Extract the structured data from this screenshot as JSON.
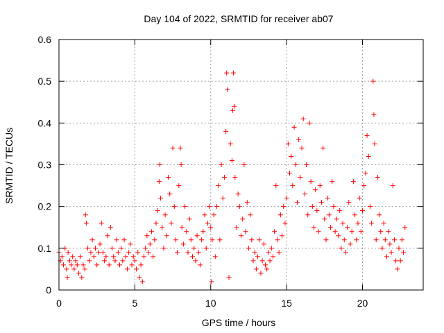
{
  "chart_data": {
    "type": "scatter",
    "title": "Day 104 of 2022, SRMTID for receiver ab07",
    "xlabel": "GPS time / hours",
    "ylabel": "SRMTID / TECUs",
    "xlim": [
      0,
      24
    ],
    "ylim": [
      0,
      0.6
    ],
    "xticks": [
      0,
      5,
      10,
      15,
      20
    ],
    "yticks": [
      0,
      0.1,
      0.2,
      0.3,
      0.4,
      0.5,
      0.6
    ],
    "xtick_labels": [
      "0",
      "5",
      "10",
      "15",
      "20"
    ],
    "ytick_labels": [
      "0",
      "0.1",
      "0.2",
      "0.3",
      "0.4",
      "0.5",
      "0.6"
    ],
    "grid": true,
    "marker": "plus",
    "color": "#ff0000",
    "series": [
      {
        "name": "SRMTID",
        "points": [
          [
            0.0,
            0.09
          ],
          [
            0.1,
            0.07
          ],
          [
            0.2,
            0.08
          ],
          [
            0.3,
            0.06
          ],
          [
            0.4,
            0.1
          ],
          [
            0.5,
            0.05
          ],
          [
            0.55,
            0.03
          ],
          [
            0.6,
            0.09
          ],
          [
            0.7,
            0.07
          ],
          [
            0.8,
            0.06
          ],
          [
            0.9,
            0.08
          ],
          [
            1.0,
            0.05
          ],
          [
            1.1,
            0.07
          ],
          [
            1.2,
            0.06
          ],
          [
            1.3,
            0.04
          ],
          [
            1.4,
            0.08
          ],
          [
            1.5,
            0.03
          ],
          [
            1.6,
            0.06
          ],
          [
            1.7,
            0.05
          ],
          [
            1.75,
            0.18
          ],
          [
            1.8,
            0.16
          ],
          [
            1.9,
            0.1
          ],
          [
            2.0,
            0.07
          ],
          [
            2.1,
            0.09
          ],
          [
            2.2,
            0.12
          ],
          [
            2.3,
            0.08
          ],
          [
            2.4,
            0.1
          ],
          [
            2.5,
            0.06
          ],
          [
            2.6,
            0.09
          ],
          [
            2.7,
            0.11
          ],
          [
            2.8,
            0.16
          ],
          [
            2.9,
            0.09
          ],
          [
            3.0,
            0.07
          ],
          [
            3.1,
            0.08
          ],
          [
            3.2,
            0.13
          ],
          [
            3.3,
            0.06
          ],
          [
            3.4,
            0.15
          ],
          [
            3.5,
            0.1
          ],
          [
            3.6,
            0.08
          ],
          [
            3.7,
            0.07
          ],
          [
            3.8,
            0.12
          ],
          [
            3.9,
            0.09
          ],
          [
            4.0,
            0.06
          ],
          [
            4.1,
            0.1
          ],
          [
            4.2,
            0.07
          ],
          [
            4.3,
            0.12
          ],
          [
            4.4,
            0.08
          ],
          [
            4.5,
            0.05
          ],
          [
            4.6,
            0.09
          ],
          [
            4.7,
            0.11
          ],
          [
            4.8,
            0.06
          ],
          [
            4.9,
            0.08
          ],
          [
            5.0,
            0.07
          ],
          [
            5.1,
            0.05
          ],
          [
            5.2,
            0.09
          ],
          [
            5.3,
            0.03
          ],
          [
            5.4,
            0.06
          ],
          [
            5.5,
            0.02
          ],
          [
            5.6,
            0.08
          ],
          [
            5.7,
            0.1
          ],
          [
            5.8,
            0.13
          ],
          [
            5.9,
            0.09
          ],
          [
            6.0,
            0.11
          ],
          [
            6.1,
            0.14
          ],
          [
            6.2,
            0.08
          ],
          [
            6.3,
            0.12
          ],
          [
            6.4,
            0.16
          ],
          [
            6.5,
            0.19
          ],
          [
            6.6,
            0.26
          ],
          [
            6.65,
            0.3
          ],
          [
            6.7,
            0.22
          ],
          [
            6.8,
            0.15
          ],
          [
            6.9,
            0.1
          ],
          [
            7.0,
            0.18
          ],
          [
            7.1,
            0.13
          ],
          [
            7.2,
            0.27
          ],
          [
            7.3,
            0.23
          ],
          [
            7.4,
            0.16
          ],
          [
            7.5,
            0.34
          ],
          [
            7.6,
            0.2
          ],
          [
            7.7,
            0.12
          ],
          [
            7.8,
            0.09
          ],
          [
            7.9,
            0.25
          ],
          [
            8.0,
            0.34
          ],
          [
            8.05,
            0.3
          ],
          [
            8.1,
            0.15
          ],
          [
            8.2,
            0.11
          ],
          [
            8.3,
            0.2
          ],
          [
            8.4,
            0.14
          ],
          [
            8.5,
            0.09
          ],
          [
            8.6,
            0.17
          ],
          [
            8.7,
            0.12
          ],
          [
            8.8,
            0.08
          ],
          [
            8.9,
            0.1
          ],
          [
            9.0,
            0.07
          ],
          [
            9.1,
            0.13
          ],
          [
            9.2,
            0.09
          ],
          [
            9.3,
            0.06
          ],
          [
            9.4,
            0.12
          ],
          [
            9.5,
            0.14
          ],
          [
            9.6,
            0.18
          ],
          [
            9.7,
            0.1
          ],
          [
            9.8,
            0.16
          ],
          [
            9.9,
            0.2
          ],
          [
            10.0,
            0.15
          ],
          [
            10.05,
            0.02
          ],
          [
            10.1,
            0.12
          ],
          [
            10.2,
            0.18
          ],
          [
            10.3,
            0.08
          ],
          [
            10.4,
            0.2
          ],
          [
            10.5,
            0.25
          ],
          [
            10.6,
            0.12
          ],
          [
            10.7,
            0.3
          ],
          [
            10.8,
            0.22
          ],
          [
            10.9,
            0.27
          ],
          [
            11.0,
            0.38
          ],
          [
            11.05,
            0.52
          ],
          [
            11.1,
            0.48
          ],
          [
            11.2,
            0.03
          ],
          [
            11.3,
            0.35
          ],
          [
            11.4,
            0.31
          ],
          [
            11.45,
            0.43
          ],
          [
            11.5,
            0.52
          ],
          [
            11.55,
            0.44
          ],
          [
            11.6,
            0.27
          ],
          [
            11.7,
            0.15
          ],
          [
            11.8,
            0.23
          ],
          [
            11.9,
            0.2
          ],
          [
            12.0,
            0.13
          ],
          [
            12.1,
            0.17
          ],
          [
            12.2,
            0.3
          ],
          [
            12.3,
            0.14
          ],
          [
            12.4,
            0.21
          ],
          [
            12.5,
            0.1
          ],
          [
            12.6,
            0.18
          ],
          [
            12.7,
            0.12
          ],
          [
            12.8,
            0.07
          ],
          [
            12.9,
            0.09
          ],
          [
            13.0,
            0.05
          ],
          [
            13.1,
            0.08
          ],
          [
            13.2,
            0.12
          ],
          [
            13.3,
            0.04
          ],
          [
            13.4,
            0.07
          ],
          [
            13.5,
            0.11
          ],
          [
            13.6,
            0.06
          ],
          [
            13.7,
            0.05
          ],
          [
            13.8,
            0.09
          ],
          [
            13.9,
            0.07
          ],
          [
            14.0,
            0.1
          ],
          [
            14.1,
            0.08
          ],
          [
            14.2,
            0.14
          ],
          [
            14.3,
            0.25
          ],
          [
            14.4,
            0.12
          ],
          [
            14.5,
            0.09
          ],
          [
            14.6,
            0.18
          ],
          [
            14.7,
            0.13
          ],
          [
            14.8,
            0.2
          ],
          [
            14.9,
            0.16
          ],
          [
            15.0,
            0.22
          ],
          [
            15.1,
            0.35
          ],
          [
            15.2,
            0.28
          ],
          [
            15.3,
            0.32
          ],
          [
            15.4,
            0.25
          ],
          [
            15.5,
            0.39
          ],
          [
            15.6,
            0.3
          ],
          [
            15.7,
            0.21
          ],
          [
            15.8,
            0.36
          ],
          [
            15.9,
            0.27
          ],
          [
            16.0,
            0.34
          ],
          [
            16.1,
            0.41
          ],
          [
            16.2,
            0.23
          ],
          [
            16.3,
            0.3
          ],
          [
            16.4,
            0.18
          ],
          [
            16.5,
            0.4
          ],
          [
            16.6,
            0.26
          ],
          [
            16.7,
            0.2
          ],
          [
            16.8,
            0.15
          ],
          [
            16.9,
            0.24
          ],
          [
            17.0,
            0.19
          ],
          [
            17.1,
            0.14
          ],
          [
            17.2,
            0.25
          ],
          [
            17.3,
            0.21
          ],
          [
            17.4,
            0.34
          ],
          [
            17.5,
            0.17
          ],
          [
            17.6,
            0.12
          ],
          [
            17.7,
            0.22
          ],
          [
            17.8,
            0.18
          ],
          [
            17.9,
            0.15
          ],
          [
            18.0,
            0.26
          ],
          [
            18.1,
            0.2
          ],
          [
            18.2,
            0.14
          ],
          [
            18.3,
            0.17
          ],
          [
            18.4,
            0.13
          ],
          [
            18.5,
            0.19
          ],
          [
            18.6,
            0.1
          ],
          [
            18.7,
            0.16
          ],
          [
            18.8,
            0.12
          ],
          [
            18.9,
            0.09
          ],
          [
            19.0,
            0.15
          ],
          [
            19.1,
            0.21
          ],
          [
            19.2,
            0.11
          ],
          [
            19.3,
            0.14
          ],
          [
            19.4,
            0.26
          ],
          [
            19.5,
            0.18
          ],
          [
            19.6,
            0.12
          ],
          [
            19.7,
            0.16
          ],
          [
            19.8,
            0.22
          ],
          [
            19.9,
            0.14
          ],
          [
            20.0,
            0.19
          ],
          [
            20.1,
            0.25
          ],
          [
            20.2,
            0.28
          ],
          [
            20.3,
            0.37
          ],
          [
            20.4,
            0.32
          ],
          [
            20.5,
            0.2
          ],
          [
            20.6,
            0.16
          ],
          [
            20.7,
            0.5
          ],
          [
            20.75,
            0.42
          ],
          [
            20.8,
            0.35
          ],
          [
            20.9,
            0.12
          ],
          [
            21.0,
            0.27
          ],
          [
            21.1,
            0.18
          ],
          [
            21.2,
            0.14
          ],
          [
            21.3,
            0.1
          ],
          [
            21.4,
            0.16
          ],
          [
            21.5,
            0.12
          ],
          [
            21.6,
            0.08
          ],
          [
            21.7,
            0.14
          ],
          [
            21.8,
            0.11
          ],
          [
            21.9,
            0.09
          ],
          [
            22.0,
            0.25
          ],
          [
            22.1,
            0.12
          ],
          [
            22.2,
            0.07
          ],
          [
            22.3,
            0.05
          ],
          [
            22.4,
            0.1
          ],
          [
            22.5,
            0.07
          ],
          [
            22.6,
            0.12
          ],
          [
            22.7,
            0.09
          ],
          [
            22.8,
            0.15
          ]
        ]
      }
    ]
  }
}
